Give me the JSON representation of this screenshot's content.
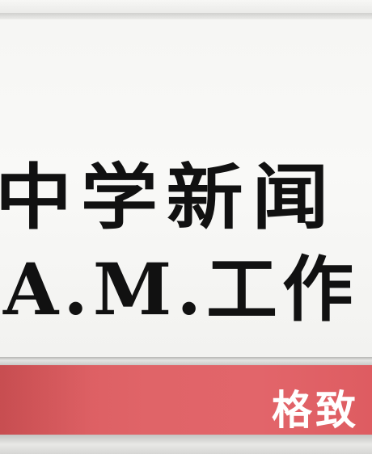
{
  "sign": {
    "line1": "中学新闻",
    "line2": "A.M.工作",
    "band_text": "格致"
  },
  "colors": {
    "panel": "#f6f6f4",
    "text": "#111111",
    "band": "#e06468",
    "band_text": "#ffffff"
  }
}
